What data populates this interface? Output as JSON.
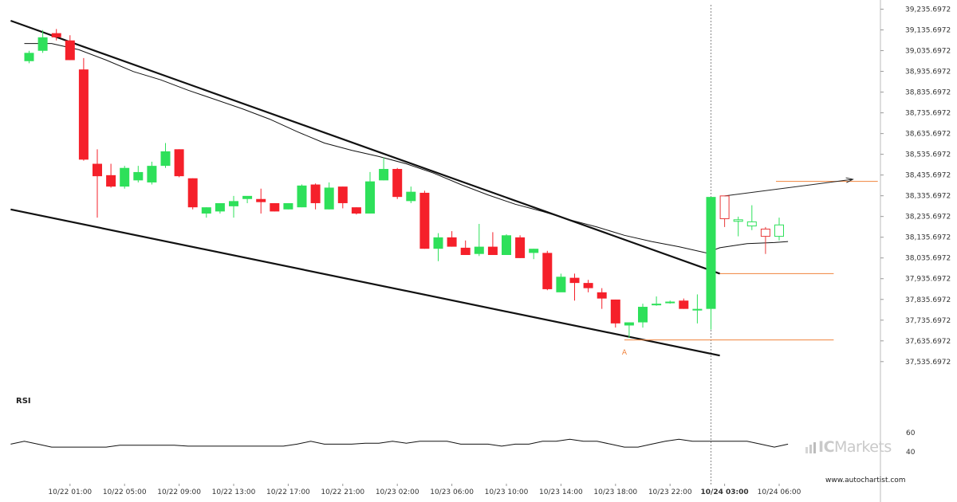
{
  "rsi_label": "RSI",
  "brand": {
    "name_bold": "IC",
    "name_rest": "Markets"
  },
  "watermark": "www.autochartist.com",
  "colors": {
    "up": "#2ee05a",
    "down": "#f5202a",
    "forecast": "#e83a3a",
    "level": "#f0823c",
    "trend": "#111111"
  },
  "chart_data": {
    "type": "candlestick",
    "price_axis": {
      "ticks": [
        "39,235.6972",
        "39,135.6972",
        "39,035.6972",
        "38,935.6972",
        "38,835.6972",
        "38,735.6972",
        "38,635.6972",
        "38,535.6972",
        "38,435.6972",
        "38,335.6972",
        "38,235.6972",
        "38,135.6972",
        "38,035.6972",
        "37,935.6972",
        "37,835.6972",
        "37,735.6972",
        "37,635.6972",
        "37,535.6972"
      ],
      "range": [
        37485,
        39255
      ]
    },
    "rsi_axis": {
      "ticks": [
        "60",
        "40"
      ],
      "range": [
        32,
        68
      ]
    },
    "time_labels": [
      {
        "label": "10/22 01:00",
        "bar": 3
      },
      {
        "label": "10/22 05:00",
        "bar": 7
      },
      {
        "label": "10/22 09:00",
        "bar": 11
      },
      {
        "label": "10/22 13:00",
        "bar": 15
      },
      {
        "label": "10/22 17:00",
        "bar": 19
      },
      {
        "label": "10/22 21:00",
        "bar": 23
      },
      {
        "label": "10/23 02:00",
        "bar": 27
      },
      {
        "label": "10/23 06:00",
        "bar": 31
      },
      {
        "label": "10/23 10:00",
        "bar": 35
      },
      {
        "label": "10/23 14:00",
        "bar": 39
      },
      {
        "label": "10/23 18:00",
        "bar": 43
      },
      {
        "label": "10/23 22:00",
        "bar": 47
      },
      {
        "label": "10/24 03:00",
        "bar": 51,
        "bold": true
      },
      {
        "label": "10/24 06:00",
        "bar": 55
      }
    ],
    "candles": [
      [
        38985,
        39035,
        38975,
        39025
      ],
      [
        39035,
        39135,
        39025,
        39100
      ],
      [
        39120,
        39140,
        39085,
        39100
      ],
      [
        39085,
        39110,
        38990,
        38990
      ],
      [
        38945,
        39000,
        38505,
        38510
      ],
      [
        38490,
        38560,
        38230,
        38430
      ],
      [
        38435,
        38490,
        38375,
        38380
      ],
      [
        38380,
        38480,
        38370,
        38470
      ],
      [
        38410,
        38480,
        38400,
        38450
      ],
      [
        38400,
        38500,
        38390,
        38480
      ],
      [
        38480,
        38590,
        38470,
        38550
      ],
      [
        38560,
        38560,
        38425,
        38430
      ],
      [
        38420,
        38420,
        38270,
        38280
      ],
      [
        38250,
        38280,
        38230,
        38280
      ],
      [
        38260,
        38300,
        38250,
        38300
      ],
      [
        38285,
        38335,
        38230,
        38310
      ],
      [
        38320,
        38330,
        38300,
        38335
      ],
      [
        38320,
        38370,
        38250,
        38305
      ],
      [
        38300,
        38300,
        38260,
        38260
      ],
      [
        38270,
        38300,
        38270,
        38300
      ],
      [
        38280,
        38390,
        38280,
        38385
      ],
      [
        38390,
        38395,
        38270,
        38300
      ],
      [
        38270,
        38400,
        38270,
        38375
      ],
      [
        38380,
        38380,
        38275,
        38300
      ],
      [
        38280,
        38280,
        38245,
        38250
      ],
      [
        38250,
        38450,
        38250,
        38405
      ],
      [
        38410,
        38520,
        38410,
        38465
      ],
      [
        38465,
        38470,
        38320,
        38330
      ],
      [
        38310,
        38380,
        38300,
        38355
      ],
      [
        38350,
        38360,
        38080,
        38080
      ],
      [
        38080,
        38155,
        38020,
        38135
      ],
      [
        38135,
        38165,
        38090,
        38090
      ],
      [
        38085,
        38120,
        38050,
        38050
      ],
      [
        38055,
        38200,
        38045,
        38090
      ],
      [
        38090,
        38160,
        38050,
        38050
      ],
      [
        38050,
        38150,
        38050,
        38145
      ],
      [
        38135,
        38145,
        38035,
        38035
      ],
      [
        38060,
        38080,
        38030,
        38080
      ],
      [
        38060,
        38070,
        37880,
        37885
      ],
      [
        37870,
        37960,
        37880,
        37945
      ],
      [
        37940,
        37960,
        37830,
        37915
      ],
      [
        37915,
        37930,
        37870,
        37890
      ],
      [
        37870,
        37890,
        37790,
        37840
      ],
      [
        37835,
        37835,
        37700,
        37720
      ],
      [
        37710,
        37725,
        37650,
        37725
      ],
      [
        37725,
        37815,
        37700,
        37800
      ],
      [
        37810,
        37850,
        37805,
        37815
      ],
      [
        37825,
        37830,
        37815,
        37825
      ],
      [
        37830,
        37840,
        37790,
        37790
      ],
      [
        37790,
        37860,
        37720,
        37790
      ],
      [
        37790,
        38330,
        37690,
        38330
      ]
    ],
    "forecast_candles": [
      [
        38335,
        38335,
        38185,
        38225
      ],
      [
        38215,
        38235,
        38140,
        38220
      ],
      [
        38190,
        38290,
        38170,
        38210
      ],
      [
        38175,
        38185,
        38055,
        38140
      ],
      [
        38140,
        38230,
        38120,
        38195
      ]
    ],
    "moving_average": [
      [
        0,
        39070
      ],
      [
        2,
        39070
      ],
      [
        4,
        39040
      ],
      [
        6,
        38990
      ],
      [
        8,
        38935
      ],
      [
        10,
        38895
      ],
      [
        12,
        38845
      ],
      [
        14,
        38800
      ],
      [
        16,
        38755
      ],
      [
        18,
        38705
      ],
      [
        20,
        38645
      ],
      [
        22,
        38590
      ],
      [
        24,
        38555
      ],
      [
        26,
        38525
      ],
      [
        28,
        38490
      ],
      [
        30,
        38445
      ],
      [
        32,
        38390
      ],
      [
        34,
        38340
      ],
      [
        36,
        38295
      ],
      [
        38,
        38260
      ],
      [
        40,
        38220
      ],
      [
        42,
        38185
      ],
      [
        44,
        38145
      ],
      [
        46,
        38115
      ],
      [
        48,
        38090
      ],
      [
        50,
        38060
      ],
      [
        51,
        38085
      ],
      [
        53,
        38105
      ],
      [
        55,
        38110
      ],
      [
        56,
        38115
      ]
    ],
    "trend_lines": [
      {
        "from": [
          -1,
          39180
        ],
        "to": [
          51,
          37960
        ]
      },
      {
        "from": [
          -1,
          38270
        ],
        "to": [
          51,
          37565
        ]
      }
    ],
    "levels": [
      {
        "price": 37960,
        "from_bar": 51,
        "to_bar": 59
      },
      {
        "price": 37640,
        "from_bar": 44,
        "to_bar": 59
      }
    ],
    "point_label": {
      "text": "A",
      "bar": 44,
      "price": 37600
    },
    "target_arrow": {
      "from": [
        51,
        38335
      ],
      "to": [
        59,
        38415
      ]
    },
    "forecast_level": {
      "price": 38405,
      "from_bar": 55,
      "to_bar": 62
    },
    "rsi": [
      [
        -1,
        48
      ],
      [
        0,
        51
      ],
      [
        1,
        48
      ],
      [
        2,
        45
      ],
      [
        3,
        45
      ],
      [
        4,
        45
      ],
      [
        5,
        45
      ],
      [
        6,
        45
      ],
      [
        7,
        47
      ],
      [
        8,
        47
      ],
      [
        9,
        47
      ],
      [
        10,
        47
      ],
      [
        11,
        47
      ],
      [
        12,
        46
      ],
      [
        13,
        46
      ],
      [
        14,
        46
      ],
      [
        15,
        46
      ],
      [
        16,
        46
      ],
      [
        17,
        46
      ],
      [
        18,
        46
      ],
      [
        19,
        46
      ],
      [
        20,
        48
      ],
      [
        21,
        51
      ],
      [
        22,
        48
      ],
      [
        23,
        48
      ],
      [
        24,
        48
      ],
      [
        25,
        49
      ],
      [
        26,
        49
      ],
      [
        27,
        51
      ],
      [
        28,
        49
      ],
      [
        29,
        51
      ],
      [
        30,
        51
      ],
      [
        31,
        51
      ],
      [
        32,
        48
      ],
      [
        33,
        48
      ],
      [
        34,
        48
      ],
      [
        35,
        46
      ],
      [
        36,
        48
      ],
      [
        37,
        48
      ],
      [
        38,
        51
      ],
      [
        39,
        51
      ],
      [
        40,
        53
      ],
      [
        41,
        51
      ],
      [
        42,
        51
      ],
      [
        43,
        48
      ],
      [
        44,
        45
      ],
      [
        45,
        45
      ],
      [
        46,
        48
      ],
      [
        47,
        51
      ],
      [
        48,
        53
      ],
      [
        49,
        51
      ],
      [
        50,
        51
      ],
      [
        51,
        51
      ],
      [
        52,
        51
      ],
      [
        53,
        51
      ],
      [
        54,
        48
      ],
      [
        55,
        45
      ],
      [
        56,
        48
      ]
    ]
  }
}
